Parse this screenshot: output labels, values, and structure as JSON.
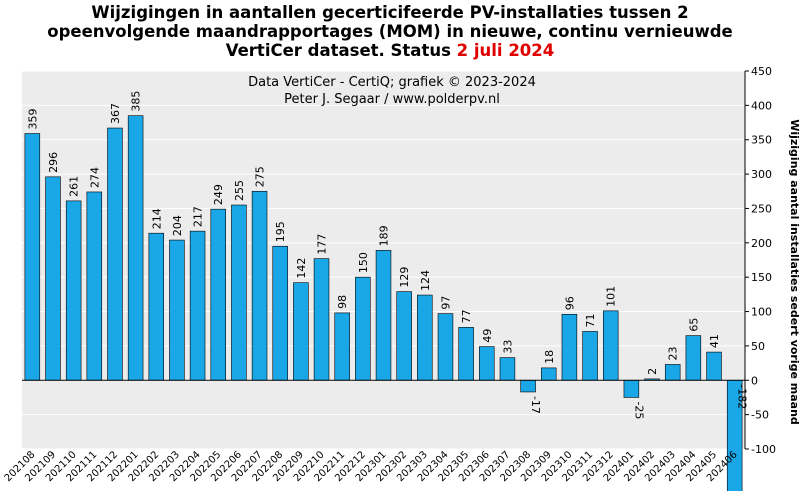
{
  "title": {
    "line1": "Wijzigingen  in aantallen gecerticifeerde PV-installaties  tussen 2",
    "line2": "opeenvolgende maandrapportages (MOM) in nieuwe, continu  vernieuwde",
    "line3_prefix": "VertiCer dataset. Status ",
    "line3_highlight": "2 juli  2024"
  },
  "credit": {
    "line1": "Data VertiCer  - CertiQ;  grafiek  © 2023-2024",
    "line2": "Peter J. Segaar / www.polderpv.nl"
  },
  "colors": {
    "bar": "#1aa7e8",
    "bar_stroke": "#000000",
    "plot_bg": "#ececec",
    "grid": "#ffffff",
    "title_highlight": "#e00000"
  },
  "chart_data": {
    "type": "bar",
    "ylabel": "Wijziging aantal installaties sedert vorige maand",
    "ylim": [
      -100,
      450
    ],
    "yticks": [
      -100,
      -50,
      0,
      50,
      100,
      150,
      200,
      250,
      300,
      350,
      400,
      450
    ],
    "y_axis_side": "right",
    "grid": true,
    "categories": [
      "202108",
      "202109",
      "202110",
      "202111",
      "202112",
      "202201",
      "202202",
      "202203",
      "202204",
      "202205",
      "202206",
      "202207",
      "202208",
      "202209",
      "202210",
      "202211",
      "202212",
      "202301",
      "202302",
      "202303",
      "202304",
      "202305",
      "202306",
      "202307",
      "202308",
      "202309",
      "202310",
      "202311",
      "202312",
      "202401",
      "202402",
      "202403",
      "202404",
      "202405",
      "202406"
    ],
    "values": [
      359,
      296,
      261,
      274,
      367,
      385,
      214,
      204,
      217,
      249,
      255,
      275,
      195,
      142,
      177,
      98,
      150,
      189,
      129,
      124,
      97,
      77,
      49,
      33,
      -17,
      18,
      96,
      71,
      101,
      -25,
      2,
      23,
      65,
      41,
      -182
    ]
  }
}
